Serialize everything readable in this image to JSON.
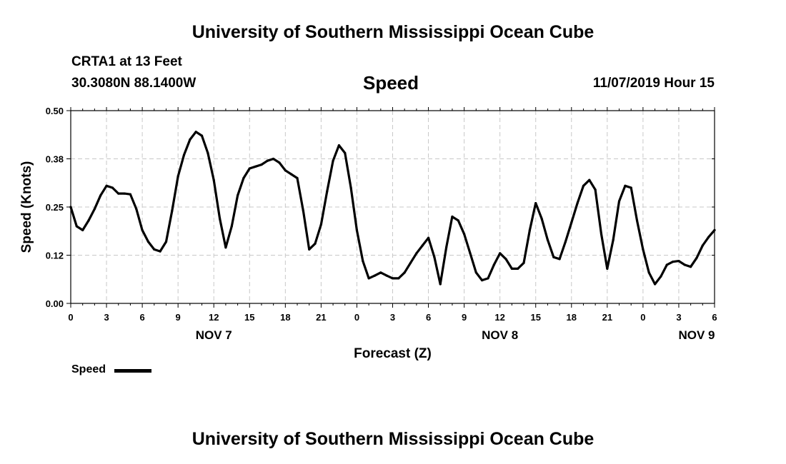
{
  "header": {
    "title": "University of Southern Mississippi Ocean Cube",
    "station": "CRTA1 at 13 Feet",
    "coords": "30.3080N 88.1400W",
    "variable": "Speed",
    "run": "11/07/2019 Hour 15"
  },
  "footer": {
    "title": "University of Southern Mississippi Ocean Cube"
  },
  "legend": {
    "label": "Speed"
  },
  "chart_data": {
    "type": "line",
    "title": "Speed",
    "xlabel": "Forecast (Z)",
    "ylabel": "Speed (Knots)",
    "ylim": [
      0,
      0.5
    ],
    "xlim": [
      0,
      54
    ],
    "grid": true,
    "legend_position": "bottom-left",
    "y_ticks": [
      {
        "value": 0,
        "label": "0.00"
      },
      {
        "value": 0.125,
        "label": "0.12"
      },
      {
        "value": 0.25,
        "label": "0.25"
      },
      {
        "value": 0.375,
        "label": "0.38"
      },
      {
        "value": 0.5,
        "label": "0.50"
      }
    ],
    "x_ticks": [
      {
        "value": 0,
        "label": "0"
      },
      {
        "value": 3,
        "label": "3"
      },
      {
        "value": 6,
        "label": "6"
      },
      {
        "value": 9,
        "label": "9"
      },
      {
        "value": 12,
        "label": "12"
      },
      {
        "value": 15,
        "label": "15"
      },
      {
        "value": 18,
        "label": "18"
      },
      {
        "value": 21,
        "label": "21"
      },
      {
        "value": 24,
        "label": "0"
      },
      {
        "value": 27,
        "label": "3"
      },
      {
        "value": 30,
        "label": "6"
      },
      {
        "value": 33,
        "label": "9"
      },
      {
        "value": 36,
        "label": "12"
      },
      {
        "value": 39,
        "label": "15"
      },
      {
        "value": 42,
        "label": "18"
      },
      {
        "value": 45,
        "label": "21"
      },
      {
        "value": 48,
        "label": "0"
      },
      {
        "value": 51,
        "label": "3"
      },
      {
        "value": 54,
        "label": "6"
      }
    ],
    "day_labels": [
      {
        "value": 12,
        "label": "NOV 7"
      },
      {
        "value": 36,
        "label": "NOV 8"
      },
      {
        "value": 52.5,
        "label": "NOV 9"
      }
    ],
    "series": [
      {
        "name": "Speed",
        "x": [
          0,
          0.5,
          1,
          1.5,
          2,
          2.5,
          3,
          3.5,
          4,
          4.5,
          5,
          5.5,
          6,
          6.5,
          7,
          7.5,
          8,
          8.5,
          9,
          9.5,
          10,
          10.5,
          11,
          11.5,
          12,
          12.5,
          13,
          13.5,
          14,
          14.5,
          15,
          15.5,
          16,
          16.5,
          17,
          17.5,
          18,
          18.5,
          19,
          19.5,
          20,
          20.5,
          21,
          21.5,
          22,
          22.5,
          23,
          23.5,
          24,
          24.5,
          25,
          25.5,
          26,
          26.5,
          27,
          27.5,
          28,
          28.5,
          29,
          29.5,
          30,
          30.5,
          31,
          31.5,
          32,
          32.5,
          33,
          33.5,
          34,
          34.5,
          35,
          35.5,
          36,
          36.5,
          37,
          37.5,
          38,
          38.5,
          39,
          39.5,
          40,
          40.5,
          41,
          41.5,
          42,
          42.5,
          43,
          43.5,
          44,
          44.5,
          45,
          45.5,
          46,
          46.5,
          47,
          47.5,
          48,
          48.5,
          49,
          49.5,
          50,
          50.5,
          51,
          51.5,
          52,
          52.5,
          53,
          53.5,
          54
        ],
        "values": [
          0.25,
          0.2,
          0.19,
          0.215,
          0.245,
          0.28,
          0.305,
          0.3,
          0.285,
          0.285,
          0.283,
          0.245,
          0.19,
          0.16,
          0.14,
          0.135,
          0.16,
          0.24,
          0.33,
          0.385,
          0.425,
          0.445,
          0.435,
          0.39,
          0.32,
          0.22,
          0.145,
          0.2,
          0.28,
          0.325,
          0.35,
          0.355,
          0.36,
          0.37,
          0.375,
          0.365,
          0.345,
          0.335,
          0.325,
          0.24,
          0.14,
          0.155,
          0.205,
          0.29,
          0.37,
          0.41,
          0.39,
          0.3,
          0.19,
          0.11,
          0.065,
          0.072,
          0.08,
          0.072,
          0.065,
          0.065,
          0.08,
          0.105,
          0.13,
          0.15,
          0.17,
          0.12,
          0.05,
          0.145,
          0.225,
          0.215,
          0.18,
          0.13,
          0.08,
          0.06,
          0.065,
          0.1,
          0.13,
          0.115,
          0.09,
          0.09,
          0.105,
          0.19,
          0.26,
          0.22,
          0.165,
          0.12,
          0.115,
          0.16,
          0.21,
          0.26,
          0.305,
          0.32,
          0.295,
          0.18,
          0.09,
          0.165,
          0.265,
          0.305,
          0.3,
          0.215,
          0.14,
          0.08,
          0.05,
          0.07,
          0.1,
          0.108,
          0.11,
          0.1,
          0.095,
          0.118,
          0.15,
          0.172,
          0.19
        ]
      }
    ]
  }
}
